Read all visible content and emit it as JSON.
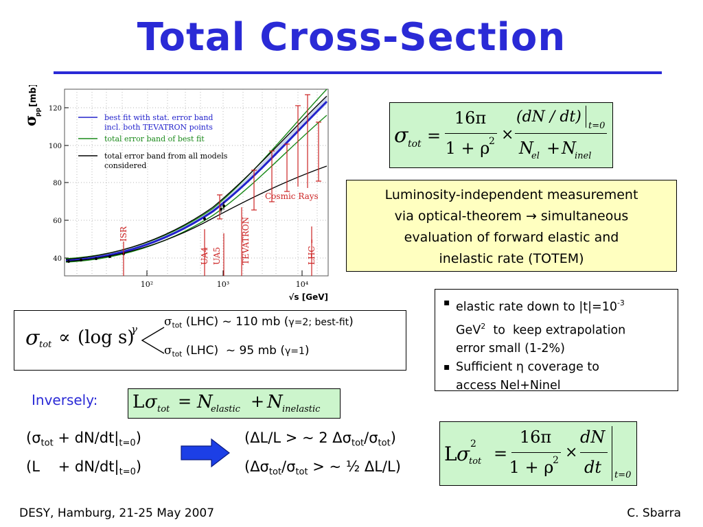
{
  "slide": {
    "title": "Total Cross-Section",
    "footer_left": "DESY, Hamburg, 21-25 May 2007",
    "footer_right": "C. Sbarra"
  },
  "plot": {
    "y_label_sigma": "σ",
    "y_label_sub": "pp",
    "y_label_unit": "[mb]",
    "x_label": "√s [GeV]",
    "y_ticks": [
      "40",
      "60",
      "80",
      "100",
      "120"
    ],
    "x_ticks": [
      "10²",
      "10³",
      "10⁴"
    ],
    "legend": [
      {
        "text": "best fit with stat. error band",
        "color": "#2222cc"
      },
      {
        "text": "incl. both TEVATRON points",
        "color": "#2222cc"
      },
      {
        "text": "total error band of best fit",
        "color": "#1a8a1a"
      },
      {
        "text": "total error band from all models",
        "color": "#000000"
      },
      {
        "text": "considered",
        "color": "#000000"
      }
    ],
    "annotations": {
      "isr": "ISR",
      "ua4": "UA4",
      "ua5": "UA5",
      "tevatron": "TEVATRON",
      "lhc": "LHC –",
      "cosmic": "Cosmic Rays"
    },
    "colors": {
      "blue": "#2222cc",
      "green": "#1a8a1a",
      "black": "#000000",
      "red": "#cc2222"
    }
  },
  "formula_top": {
    "sigma": "σ",
    "tot": "tot",
    "num_left": "16π",
    "den_left": "1 + ρ",
    "den_left_exp": "2",
    "times": "×",
    "num_right": "(dN / dt)",
    "eval": "t=0",
    "den_right_N1": "N",
    "den_right_s1": "el",
    "plus": "+",
    "den_right_N2": "N",
    "den_right_s2": "inel"
  },
  "note": {
    "line1": "Luminosity-independent measurement",
    "line2": "via optical-theorem → simultaneous",
    "line3": "evaluation of forward elastic and",
    "line4": "inelastic rate (TOTEM)"
  },
  "bullets": {
    "b1_l1": "elastic rate down to |t|=10",
    "b1_exp": "-3",
    "b1_l2a": "GeV",
    "b1_l2exp": "2",
    "b1_l2b": "  to  keep extrapolation",
    "b1_l3": "error small (1-2%)",
    "b2_l1": "Sufficient η coverage to",
    "b2_l2": "access Nel+Ninel"
  },
  "prop": {
    "sigma": "σ",
    "tot": "tot",
    "prop": "∝",
    "log": "(log s)",
    "gamma": "γ",
    "r1_sigma": "σ",
    "r1_tot": "tot",
    "r1_text": " (LHC) ~ 110 mb (",
    "r1_gamma": "γ=2; best-fit",
    "r1_close": ")",
    "r2_sigma": "σ",
    "r2_tot": "tot",
    "r2_text": " (LHC)  ~ 95 mb (",
    "r2_gamma": "γ=1",
    "r2_close": ")"
  },
  "inversely": {
    "label": "Inversely:",
    "L": "L",
    "sigma": "σ",
    "tot": "tot",
    "eq": "=",
    "N1": "N",
    "s1": "elastic",
    "plus": "+",
    "N2": "N",
    "s2": "inelastic"
  },
  "relations": {
    "l1_open": "(σ",
    "l1_sub": "tot",
    "l1_text": " + dN/dt|",
    "l1_sub2": "t=0",
    "l1_close": ")",
    "l2_open": "(L    + dN/dt|",
    "l2_sub": "t=0",
    "l2_close": ")",
    "r1_a": "(ΔL/L > ~ 2 Δσ",
    "r1_sub1": "tot",
    "r1_b": "/σ",
    "r1_sub2": "tot",
    "r1_close": ")",
    "r2_a": "(Δσ",
    "r2_sub1": "tot",
    "r2_b": "/σ",
    "r2_sub2": "tot",
    "r2_c": " > ~ ½ ΔL/L)"
  },
  "formula_bottom": {
    "L": "L",
    "sigma": "σ",
    "exp": "2",
    "tot": "tot",
    "eq": "=",
    "num_left": "16π",
    "den_left": "1 + ρ",
    "den_exp": "2",
    "times": "×",
    "num_right": "dN",
    "den_right": "dt",
    "eval": "t=0"
  }
}
